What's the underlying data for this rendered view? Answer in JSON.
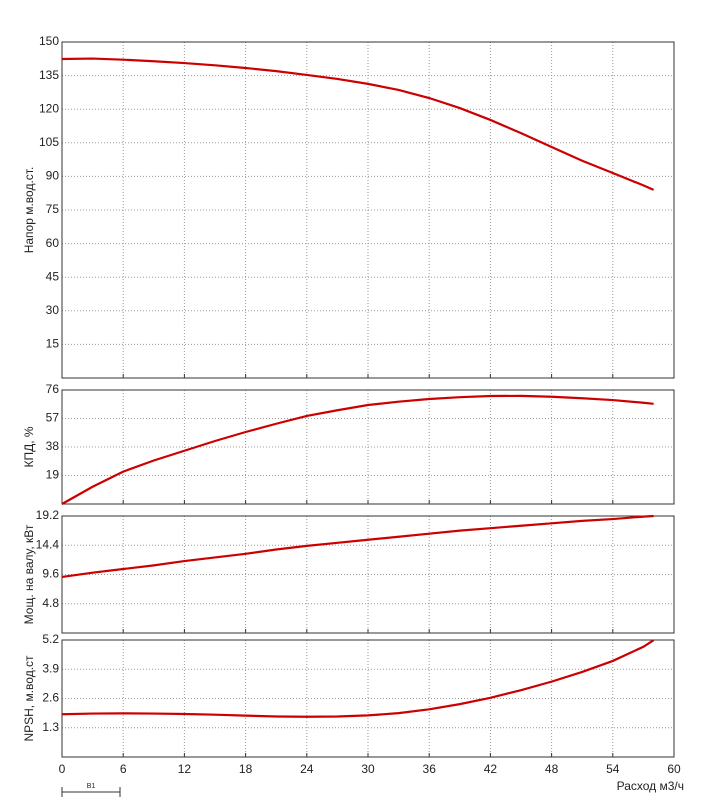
{
  "chart_data": [
    {
      "type": "line",
      "ylabel": "Напор м.вод.ст.",
      "x": [
        0,
        3,
        6,
        9,
        12,
        15,
        18,
        21,
        24,
        27,
        30,
        33,
        36,
        39,
        42,
        45,
        48,
        51,
        54,
        57,
        58
      ],
      "series": [
        {
          "name": null,
          "color": "#cc0000",
          "values": [
            142.4,
            142.6,
            142.1,
            141.4,
            140.6,
            139.6,
            138.4,
            137,
            135.3,
            133.5,
            131.3,
            128.6,
            125,
            120.5,
            115.2,
            109.3,
            103.1,
            97,
            91.5,
            86,
            84
          ]
        }
      ],
      "xlim": [
        0,
        60
      ],
      "xticks": [
        0,
        6,
        12,
        18,
        24,
        30,
        36,
        42,
        48,
        54,
        60
      ],
      "ylim": [
        0,
        150
      ],
      "yticks": [
        15,
        30,
        45,
        60,
        75,
        90,
        105,
        120,
        135,
        150
      ],
      "grid": true
    },
    {
      "type": "line",
      "ylabel": "КПД, %",
      "x": [
        0,
        3,
        6,
        9,
        12,
        15,
        18,
        21,
        24,
        27,
        30,
        33,
        36,
        39,
        42,
        45,
        48,
        51,
        54,
        57,
        58
      ],
      "series": [
        {
          "name": null,
          "color": "#cc0000",
          "values": [
            0,
            11.5,
            21.6,
            29,
            35.5,
            42,
            48,
            53.5,
            58.7,
            62.5,
            66,
            68.2,
            70,
            71.2,
            72,
            72.1,
            71.5,
            70.5,
            69.3,
            67.5,
            66.8
          ]
        }
      ],
      "xlim": [
        0,
        60
      ],
      "xticks": [
        0,
        6,
        12,
        18,
        24,
        30,
        36,
        42,
        48,
        54,
        60
      ],
      "ylim": [
        0,
        76
      ],
      "yticks": [
        19,
        38,
        57,
        76
      ],
      "grid": true
    },
    {
      "type": "line",
      "ylabel": "Мощ. на валу, кВт",
      "x": [
        0,
        3,
        6,
        9,
        12,
        15,
        18,
        21,
        24,
        27,
        30,
        33,
        36,
        39,
        42,
        45,
        48,
        51,
        54,
        57,
        58
      ],
      "series": [
        {
          "name": null,
          "color": "#cc0000",
          "values": [
            9.2,
            9.9,
            10.5,
            11.1,
            11.8,
            12.4,
            13,
            13.7,
            14.3,
            14.8,
            15.3,
            15.8,
            16.3,
            16.8,
            17.2,
            17.6,
            18,
            18.4,
            18.7,
            19.1,
            19.2
          ]
        }
      ],
      "xlim": [
        0,
        60
      ],
      "xticks": [
        0,
        6,
        12,
        18,
        24,
        30,
        36,
        42,
        48,
        54,
        60
      ],
      "ylim": [
        0,
        19.2
      ],
      "yticks": [
        4.8,
        9.6,
        14.4,
        19.2
      ],
      "grid": true
    },
    {
      "type": "line",
      "ylabel": "NPSH, м.вод.ст",
      "xlabel": "Расход м3/ч",
      "annotation": "B1",
      "x": [
        0,
        3,
        6,
        9,
        12,
        15,
        18,
        21,
        24,
        27,
        30,
        33,
        36,
        39,
        42,
        45,
        48,
        51,
        54,
        57,
        58
      ],
      "series": [
        {
          "name": null,
          "color": "#cc0000",
          "values": [
            1.9,
            1.93,
            1.94,
            1.93,
            1.91,
            1.88,
            1.84,
            1.8,
            1.79,
            1.8,
            1.85,
            1.95,
            2.12,
            2.35,
            2.63,
            2.97,
            3.35,
            3.78,
            4.27,
            4.9,
            5.19
          ]
        }
      ],
      "xlim": [
        0,
        60
      ],
      "xticks": [
        0,
        6,
        12,
        18,
        24,
        30,
        36,
        42,
        48,
        54,
        60
      ],
      "ylim": [
        0,
        5.2
      ],
      "yticks": [
        1.3,
        2.6,
        3.9,
        5.2
      ],
      "grid": true
    }
  ]
}
